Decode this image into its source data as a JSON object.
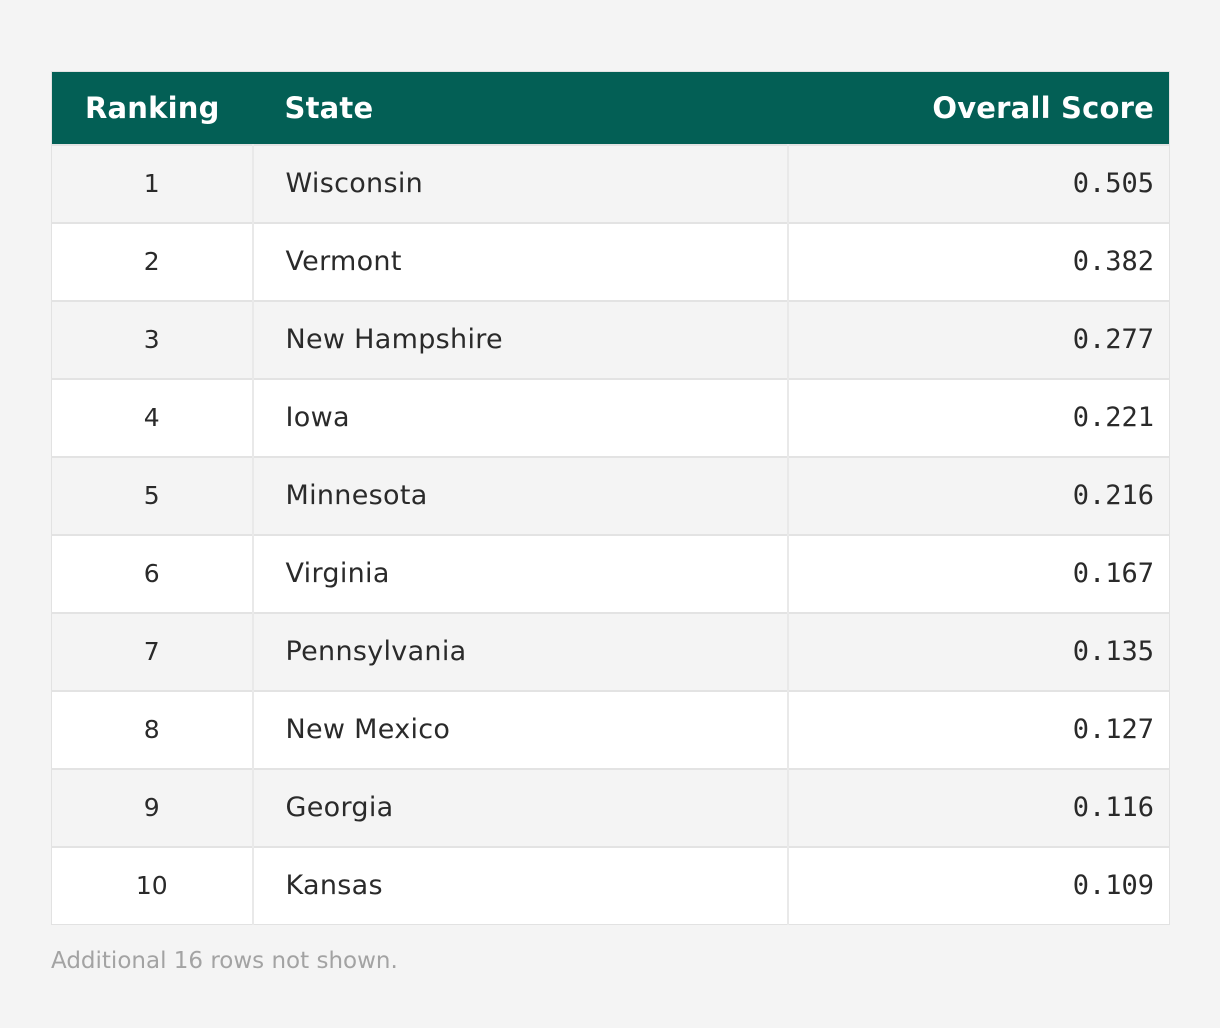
{
  "table": {
    "headers": {
      "rank": "Ranking",
      "state": "State",
      "score": "Overall Score"
    },
    "rows": [
      {
        "rank": "1",
        "state": "Wisconsin",
        "score": "0.505"
      },
      {
        "rank": "2",
        "state": "Vermont",
        "score": "0.382"
      },
      {
        "rank": "3",
        "state": "New Hampshire",
        "score": "0.277"
      },
      {
        "rank": "4",
        "state": "Iowa",
        "score": "0.221"
      },
      {
        "rank": "5",
        "state": "Minnesota",
        "score": "0.216"
      },
      {
        "rank": "6",
        "state": "Virginia",
        "score": "0.167"
      },
      {
        "rank": "7",
        "state": "Pennsylvania",
        "score": "0.135"
      },
      {
        "rank": "8",
        "state": "New Mexico",
        "score": "0.127"
      },
      {
        "rank": "9",
        "state": "Georgia",
        "score": "0.116"
      },
      {
        "rank": "10",
        "state": "Kansas",
        "score": "0.109"
      }
    ],
    "footer_note": "Additional 16 rows not shown."
  },
  "colors": {
    "header_bg": "#035f55",
    "header_text": "#ffffff",
    "row_alt_bg": "#f4f4f4",
    "row_bg": "#ffffff",
    "note_text": "#a3a3a3"
  },
  "chart_data": {
    "type": "table",
    "columns": [
      "Ranking",
      "State",
      "Overall Score"
    ],
    "rows": [
      [
        1,
        "Wisconsin",
        0.505
      ],
      [
        2,
        "Vermont",
        0.382
      ],
      [
        3,
        "New Hampshire",
        0.277
      ],
      [
        4,
        "Iowa",
        0.221
      ],
      [
        5,
        "Minnesota",
        0.216
      ],
      [
        6,
        "Virginia",
        0.167
      ],
      [
        7,
        "Pennsylvania",
        0.135
      ],
      [
        8,
        "New Mexico",
        0.127
      ],
      [
        9,
        "Georgia",
        0.116
      ],
      [
        10,
        "Kansas",
        0.109
      ]
    ]
  }
}
